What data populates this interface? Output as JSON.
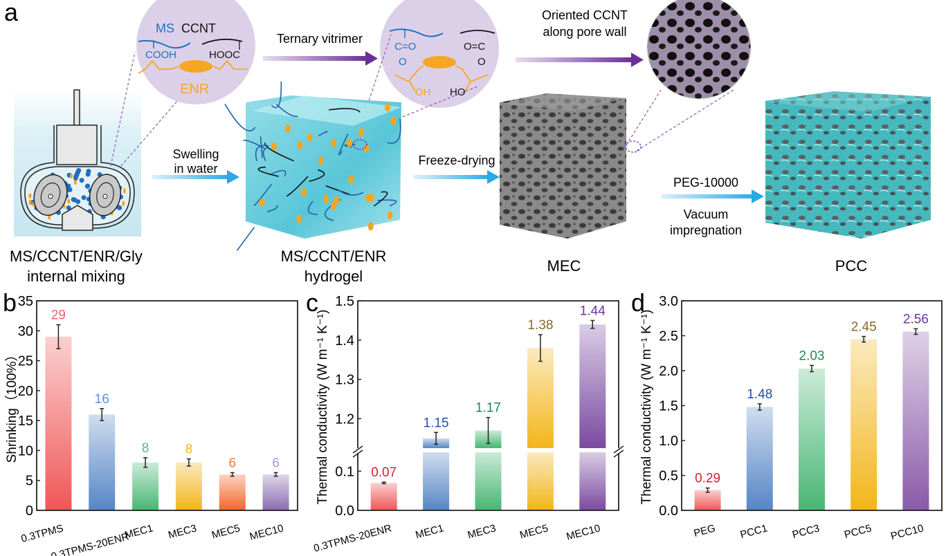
{
  "panel_letters": {
    "a": "a",
    "b": "b",
    "c": "c",
    "d": "d"
  },
  "schematic": {
    "circle1": {
      "ms": "MS",
      "ccnt": "CCNT",
      "cooh": "COOH",
      "hooc": "HOOC",
      "enr": "ENR"
    },
    "circle2": {
      "co_left": "C=O",
      "o_left": "O",
      "co_right": "O=C",
      "o_right": "O",
      "oh": "OH",
      "ho": "HO"
    },
    "arrows": {
      "ternary": "Ternary vitrimer",
      "swelling_1": "Swelling",
      "swelling_2": "in water",
      "freeze": "Freeze-drying",
      "oriented_1": "Oriented CCNT",
      "oriented_2": "along pore wall",
      "peg": "PEG-10000",
      "vacuum_1": "Vacuum",
      "vacuum_2": "impregnation"
    },
    "labels": {
      "mixing_1": "MS/CCNT/ENR/Gly",
      "mixing_2": "internal mixing",
      "hydrogel_1": "MS/CCNT/ENR",
      "hydrogel_2": "hydrogel",
      "mec": "MEC",
      "pcc": "PCC"
    },
    "colors": {
      "ms": "#1f6fc0",
      "enr": "#f5a623",
      "circle": "#dcd0e8",
      "arrow_purple": "#7a3fa0",
      "arrow_blue": "#3ab0e6"
    }
  },
  "chart_data": [
    {
      "id": "b",
      "type": "bar",
      "categories": [
        "0.3TPMS",
        "0.3TPMS-20ENR",
        "MEC1",
        "MEC3",
        "MEC5",
        "MEC10"
      ],
      "values": [
        29,
        16,
        8,
        8,
        6,
        6
      ],
      "errors": [
        2,
        1,
        0.8,
        0.6,
        0.3,
        0.3
      ],
      "data_labels": [
        "29",
        "16",
        "8",
        "8",
        "6",
        "6"
      ],
      "ylabel": "Shrinking（100%）",
      "xlabel": "",
      "ylim": [
        0,
        35
      ],
      "yticks": [
        "0",
        "5",
        "10",
        "15",
        "20",
        "25",
        "30",
        "35"
      ],
      "bar_colors": [
        "#ef5656",
        "#5585c5",
        "#47b673",
        "#f2b51a",
        "#f2662a",
        "#8a6cb0"
      ],
      "label_colors": [
        "#f25f68",
        "#5b8fdc",
        "#4cbf7a",
        "#f5b51c",
        "#f57a30",
        "#b591d6"
      ]
    },
    {
      "id": "c",
      "type": "bar",
      "categories": [
        "0.3TPMS-20ENR",
        "MEC1",
        "MEC3",
        "MEC5",
        "MEC10"
      ],
      "values": [
        0.07,
        1.15,
        1.17,
        1.38,
        1.44
      ],
      "errors": [
        0.002,
        0.015,
        0.033,
        0.034,
        0.01
      ],
      "data_labels": [
        "0.07",
        "1.15",
        "1.17",
        "1.38",
        "1.44"
      ],
      "ylabel": "Thermal conductivity (W m⁻¹ K⁻¹)",
      "xlabel": "",
      "axis_break": [
        0.15,
        1.125
      ],
      "ylim": [
        0,
        1.5
      ],
      "yticks": [
        "0.0",
        "0.1",
        "1.2",
        "1.3",
        "1.4",
        "1.5"
      ],
      "bar_colors": [
        "#ef5656",
        "#5585c5",
        "#47b673",
        "#f2b51a",
        "#7a4aa0"
      ],
      "label_colors": [
        "#d42030",
        "#1f4fa8",
        "#1a8a4a",
        "#8a6a22",
        "#7030a0"
      ]
    },
    {
      "id": "d",
      "type": "bar",
      "categories": [
        "PEG",
        "PCC1",
        "PCC3",
        "PCC5",
        "PCC10"
      ],
      "values": [
        0.29,
        1.48,
        2.03,
        2.45,
        2.56
      ],
      "errors": [
        0.03,
        0.045,
        0.045,
        0.04,
        0.04
      ],
      "data_labels": [
        "0.29",
        "1.48",
        "2.03",
        "2.45",
        "2.56"
      ],
      "ylabel": "Thermal conductivity (W m⁻¹ K⁻¹)",
      "xlabel": "",
      "ylim": [
        0,
        3.0
      ],
      "yticks": [
        "0.0",
        "0.5",
        "1.0",
        "1.5",
        "2.0",
        "2.5",
        "3.0"
      ],
      "bar_colors": [
        "#ef5656",
        "#5585c5",
        "#47b673",
        "#f2b51a",
        "#8a5aa8"
      ],
      "label_colors": [
        "#d42030",
        "#1f4fa8",
        "#1a8a4a",
        "#8a6a22",
        "#7030a0"
      ]
    }
  ]
}
